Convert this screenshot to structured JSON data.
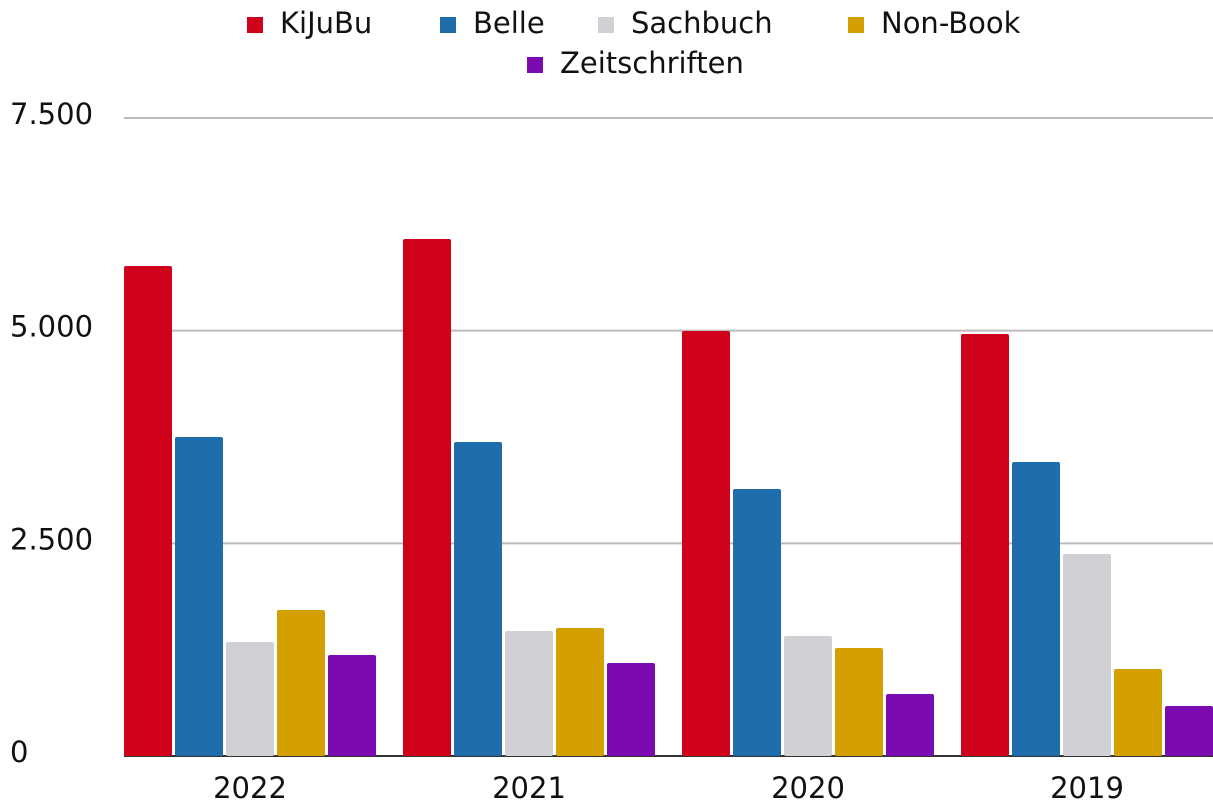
{
  "chart_data": {
    "type": "bar",
    "categories": [
      "2022",
      "2021",
      "2020",
      "2019"
    ],
    "series": [
      {
        "name": "KiJuBu",
        "color": "#d0021b",
        "values": [
          5760,
          6077,
          4996,
          4961
        ]
      },
      {
        "name": "Belle",
        "color": "#1f6eab",
        "values": [
          3750,
          3691,
          3139,
          3456
        ]
      },
      {
        "name": "Sachbuch",
        "color": "#d1d0d5",
        "values": [
          1340,
          1469,
          1411,
          2375
        ]
      },
      {
        "name": "Non-Book",
        "color": "#d4a000",
        "values": [
          1716,
          1505,
          1270,
          1023
        ]
      },
      {
        "name": "Zeitschriften",
        "color": "#7b0ab0",
        "values": [
          1187,
          1093,
          729,
          588
        ]
      }
    ],
    "ylim": [
      0,
      7500
    ],
    "yticks": [
      0,
      {
        "value": 2500,
        "label": "2.500"
      },
      {
        "value": 5000,
        "label": "5.000"
      },
      {
        "value": 7500,
        "label": "7.500"
      }
    ],
    "grid": true,
    "legend": "top"
  }
}
